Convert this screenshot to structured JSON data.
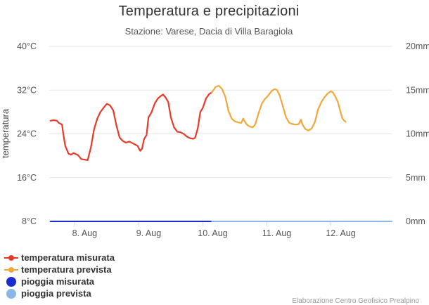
{
  "chart_data": {
    "type": "line",
    "title": "Temperatura e precipitazioni",
    "subtitle": "Stazione: Varese, Dacia di Villa Baragiola",
    "y_left": {
      "label": "temperatura",
      "ticks": [
        "8°C",
        "16°C",
        "24°C",
        "32°C",
        "40°C"
      ],
      "min": 8,
      "max": 40
    },
    "y_right": {
      "label": "",
      "ticks": [
        "0mm",
        "5mm",
        "10mm",
        "15mm",
        "20mm"
      ],
      "min": 0,
      "max": 20
    },
    "x_range": [
      7.6,
      12.95
    ],
    "x_ticks": [
      {
        "label": "8. Aug",
        "value": 8
      },
      {
        "label": "9. Aug",
        "value": 9
      },
      {
        "label": "10. Aug",
        "value": 10
      },
      {
        "label": "11. Aug",
        "value": 11
      },
      {
        "label": "12. Aug",
        "value": 12
      }
    ],
    "grid": true,
    "legend_position": "bottom-left",
    "series": [
      {
        "name": "temperatura misurata",
        "axis": "left",
        "color": "#e8392a",
        "points": [
          [
            7.62,
            26.4
          ],
          [
            7.67,
            26.5
          ],
          [
            7.72,
            26.4
          ],
          [
            7.75,
            26.0
          ],
          [
            7.8,
            25.7
          ],
          [
            7.82,
            24.0
          ],
          [
            7.85,
            21.8
          ],
          [
            7.9,
            20.4
          ],
          [
            7.94,
            20.2
          ],
          [
            7.98,
            20.5
          ],
          [
            8.05,
            20.1
          ],
          [
            8.1,
            19.4
          ],
          [
            8.15,
            19.3
          ],
          [
            8.2,
            19.2
          ],
          [
            8.25,
            21.5
          ],
          [
            8.3,
            24.8
          ],
          [
            8.35,
            26.8
          ],
          [
            8.4,
            28.0
          ],
          [
            8.45,
            28.8
          ],
          [
            8.5,
            29.5
          ],
          [
            8.55,
            29.2
          ],
          [
            8.6,
            28.3
          ],
          [
            8.65,
            25.5
          ],
          [
            8.7,
            23.3
          ],
          [
            8.75,
            22.7
          ],
          [
            8.8,
            22.4
          ],
          [
            8.85,
            22.6
          ],
          [
            8.9,
            22.3
          ],
          [
            8.95,
            22.0
          ],
          [
            8.98,
            21.8
          ],
          [
            9.02,
            20.9
          ],
          [
            9.05,
            21.3
          ],
          [
            9.08,
            23.0
          ],
          [
            9.12,
            23.8
          ],
          [
            9.15,
            27.0
          ],
          [
            9.2,
            28.0
          ],
          [
            9.25,
            29.6
          ],
          [
            9.3,
            30.5
          ],
          [
            9.35,
            31.0
          ],
          [
            9.38,
            31.2
          ],
          [
            9.42,
            30.6
          ],
          [
            9.46,
            29.8
          ],
          [
            9.5,
            27.0
          ],
          [
            9.55,
            25.2
          ],
          [
            9.6,
            24.4
          ],
          [
            9.65,
            24.3
          ],
          [
            9.7,
            24.0
          ],
          [
            9.75,
            23.5
          ],
          [
            9.8,
            23.2
          ],
          [
            9.85,
            23.1
          ],
          [
            9.88,
            23.3
          ],
          [
            9.92,
            25.0
          ],
          [
            9.96,
            28.0
          ],
          [
            10.0,
            28.8
          ],
          [
            10.05,
            30.5
          ],
          [
            10.1,
            31.3
          ],
          [
            10.14,
            31.6
          ]
        ]
      },
      {
        "name": "temperatura prevista",
        "axis": "left",
        "color": "#f0a83a",
        "points": [
          [
            10.14,
            31.6
          ],
          [
            10.2,
            32.6
          ],
          [
            10.25,
            32.8
          ],
          [
            10.3,
            32.2
          ],
          [
            10.35,
            30.8
          ],
          [
            10.4,
            28.2
          ],
          [
            10.45,
            26.8
          ],
          [
            10.5,
            26.3
          ],
          [
            10.55,
            26.1
          ],
          [
            10.6,
            26.0
          ],
          [
            10.63,
            26.8
          ],
          [
            10.66,
            26.2
          ],
          [
            10.68,
            25.8
          ],
          [
            10.72,
            25.4
          ],
          [
            10.78,
            25.2
          ],
          [
            10.82,
            25.8
          ],
          [
            10.87,
            27.8
          ],
          [
            10.92,
            29.5
          ],
          [
            10.97,
            30.4
          ],
          [
            11.02,
            31.0
          ],
          [
            11.07,
            31.8
          ],
          [
            11.12,
            32.2
          ],
          [
            11.16,
            32.0
          ],
          [
            11.2,
            31.0
          ],
          [
            11.25,
            29.0
          ],
          [
            11.3,
            27.0
          ],
          [
            11.35,
            26.0
          ],
          [
            11.4,
            25.8
          ],
          [
            11.45,
            25.7
          ],
          [
            11.5,
            25.8
          ],
          [
            11.53,
            26.6
          ],
          [
            11.56,
            25.6
          ],
          [
            11.6,
            24.9
          ],
          [
            11.65,
            24.6
          ],
          [
            11.7,
            25.0
          ],
          [
            11.75,
            26.2
          ],
          [
            11.8,
            28.5
          ],
          [
            11.85,
            29.8
          ],
          [
            11.9,
            30.7
          ],
          [
            11.95,
            31.4
          ],
          [
            12.0,
            31.8
          ],
          [
            12.03,
            31.6
          ],
          [
            12.07,
            30.8
          ],
          [
            12.11,
            29.8
          ],
          [
            12.15,
            28.0
          ],
          [
            12.18,
            26.8
          ],
          [
            12.21,
            26.4
          ],
          [
            12.23,
            26.2
          ]
        ]
      },
      {
        "name": "pioggia misurata",
        "axis": "right",
        "color": "#1a2ccf",
        "points": [
          [
            7.62,
            0
          ],
          [
            10.14,
            0
          ]
        ]
      },
      {
        "name": "pioggia prevista",
        "axis": "right",
        "color": "#8ab6e6",
        "points": [
          [
            10.14,
            0
          ],
          [
            12.95,
            0
          ]
        ]
      }
    ]
  },
  "legend": [
    {
      "label": "temperatura misurata",
      "color": "#e8392a",
      "symbol": "line-dot"
    },
    {
      "label": "temperatura prevista",
      "color": "#f0a83a",
      "symbol": "line-dot"
    },
    {
      "label": "pioggia misurata",
      "color": "#1a2ccf",
      "symbol": "circle"
    },
    {
      "label": "pioggia prevista",
      "color": "#8ab6e6",
      "symbol": "circle"
    }
  ],
  "credits": "Elaborazione Centro Geofisico Prealpino"
}
